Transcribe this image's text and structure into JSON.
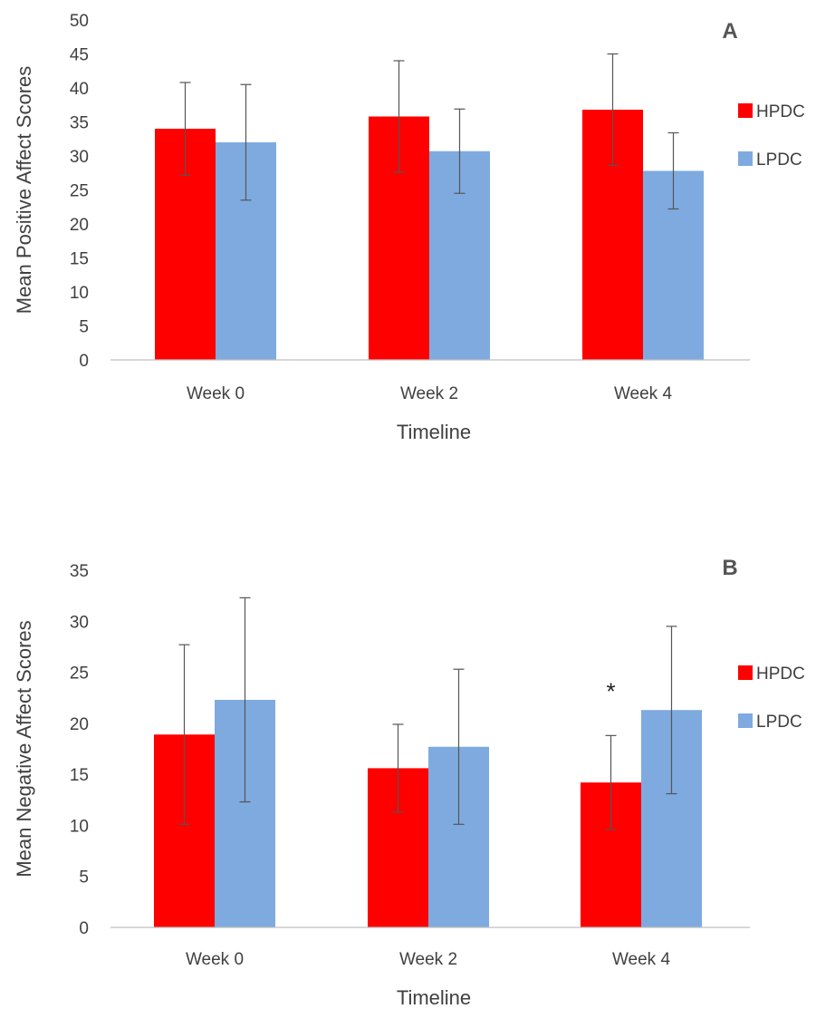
{
  "chart_data": [
    {
      "type": "bar",
      "panel_label": "A",
      "title": "",
      "xlabel": "Timeline",
      "ylabel": "Mean Positive Affect Scores",
      "ylim": [
        0,
        50
      ],
      "yticks": [
        0,
        5,
        10,
        15,
        20,
        25,
        30,
        35,
        40,
        45,
        50
      ],
      "categories": [
        "Week 0",
        "Week 2",
        "Week 4"
      ],
      "series": [
        {
          "name": "HPDC",
          "color": "#ff0000",
          "values": [
            34.0,
            35.8,
            36.8
          ],
          "error": [
            6.8,
            8.2,
            8.2
          ]
        },
        {
          "name": "LPDC",
          "color": "#7eaadf",
          "values": [
            32.0,
            30.7,
            27.8
          ],
          "error": [
            8.5,
            6.2,
            5.6
          ]
        }
      ],
      "legend": "right",
      "grid": false,
      "annotations": []
    },
    {
      "type": "bar",
      "panel_label": "B",
      "title": "",
      "xlabel": "Timeline",
      "ylabel": "Mean Negative Affect Scores",
      "ylim": [
        0,
        35
      ],
      "yticks": [
        0,
        5,
        10,
        15,
        20,
        25,
        30,
        35
      ],
      "categories": [
        "Week 0",
        "Week 2",
        "Week 4"
      ],
      "series": [
        {
          "name": "HPDC",
          "color": "#ff0000",
          "values": [
            18.9,
            15.6,
            14.2
          ],
          "error": [
            8.8,
            4.3,
            4.6
          ]
        },
        {
          "name": "LPDC",
          "color": "#7eaadf",
          "values": [
            22.3,
            17.7,
            21.3
          ],
          "error": [
            10.0,
            7.6,
            8.2
          ]
        }
      ],
      "legend": "right",
      "grid": false,
      "annotations": [
        {
          "text": "*",
          "category": "Week 4",
          "series": "HPDC"
        }
      ]
    }
  ]
}
